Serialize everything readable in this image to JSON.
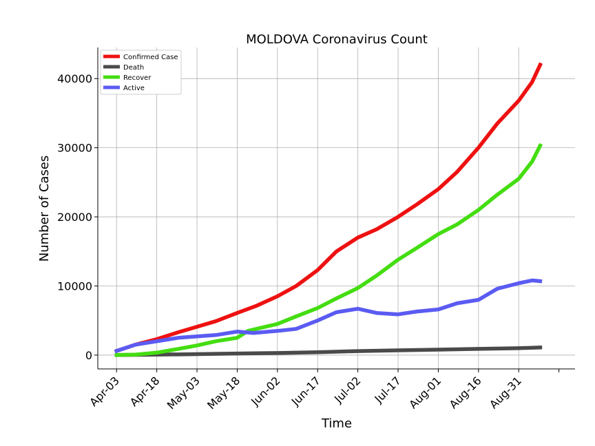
{
  "chart_data": {
    "type": "line",
    "title": "MOLDOVA Coronavirus Count",
    "xlabel": "Time",
    "ylabel": "Number of Cases",
    "x_range": [
      "2020-03-27",
      "2020-09-21"
    ],
    "ylim": [
      -2000,
      44500
    ],
    "grid": true,
    "legend_position": "top-left",
    "x_ticks": [
      "2020-04-03",
      "2020-04-18",
      "2020-05-03",
      "2020-05-18",
      "2020-06-02",
      "2020-06-17",
      "2020-07-02",
      "2020-07-17",
      "2020-08-01",
      "2020-08-16",
      "2020-08-31"
    ],
    "x_tick_labels": [
      "Apr-03",
      "Apr-18",
      "May-03",
      "May-18",
      "Jun-02",
      "Jun-17",
      "Jul-02",
      "Jul-17",
      "Aug-01",
      "Aug-16",
      "Aug-31"
    ],
    "y_ticks": [
      0,
      10000,
      20000,
      30000,
      40000
    ],
    "y_tick_labels": [
      "0",
      "10000",
      "20000",
      "30000",
      "40000"
    ],
    "series": [
      {
        "name": "Confirmed Case",
        "color": "#ee1111",
        "points": [
          [
            "2020-04-03",
            600
          ],
          [
            "2020-04-10",
            1500
          ],
          [
            "2020-04-18",
            2300
          ],
          [
            "2020-04-26",
            3300
          ],
          [
            "2020-05-03",
            4100
          ],
          [
            "2020-05-10",
            4900
          ],
          [
            "2020-05-18",
            6100
          ],
          [
            "2020-05-25",
            7100
          ],
          [
            "2020-06-02",
            8500
          ],
          [
            "2020-06-09",
            10000
          ],
          [
            "2020-06-17",
            12300
          ],
          [
            "2020-06-24",
            15000
          ],
          [
            "2020-07-02",
            17000
          ],
          [
            "2020-07-09",
            18200
          ],
          [
            "2020-07-17",
            20000
          ],
          [
            "2020-07-24",
            21800
          ],
          [
            "2020-08-01",
            24000
          ],
          [
            "2020-08-08",
            26500
          ],
          [
            "2020-08-16",
            30000
          ],
          [
            "2020-08-23",
            33500
          ],
          [
            "2020-08-31",
            36800
          ],
          [
            "2020-09-05",
            39500
          ],
          [
            "2020-09-08",
            42000
          ]
        ]
      },
      {
        "name": "Death",
        "color": "#4a4a4a",
        "points": [
          [
            "2020-04-03",
            10
          ],
          [
            "2020-04-18",
            60
          ],
          [
            "2020-05-03",
            140
          ],
          [
            "2020-05-18",
            230
          ],
          [
            "2020-06-02",
            300
          ],
          [
            "2020-06-17",
            410
          ],
          [
            "2020-07-02",
            580
          ],
          [
            "2020-07-17",
            690
          ],
          [
            "2020-08-01",
            790
          ],
          [
            "2020-08-16",
            900
          ],
          [
            "2020-08-31",
            1000
          ],
          [
            "2020-09-08",
            1110
          ]
        ]
      },
      {
        "name": "Recover",
        "color": "#44dd11",
        "points": [
          [
            "2020-04-03",
            20
          ],
          [
            "2020-04-10",
            60
          ],
          [
            "2020-04-18",
            350
          ],
          [
            "2020-04-26",
            900
          ],
          [
            "2020-05-03",
            1400
          ],
          [
            "2020-05-10",
            2000
          ],
          [
            "2020-05-18",
            2500
          ],
          [
            "2020-05-22",
            3500
          ],
          [
            "2020-06-02",
            4500
          ],
          [
            "2020-06-09",
            5600
          ],
          [
            "2020-06-17",
            6800
          ],
          [
            "2020-06-24",
            8200
          ],
          [
            "2020-07-02",
            9700
          ],
          [
            "2020-07-09",
            11500
          ],
          [
            "2020-07-17",
            13800
          ],
          [
            "2020-07-24",
            15500
          ],
          [
            "2020-08-01",
            17500
          ],
          [
            "2020-08-08",
            18900
          ],
          [
            "2020-08-16",
            21000
          ],
          [
            "2020-08-23",
            23200
          ],
          [
            "2020-08-31",
            25500
          ],
          [
            "2020-09-05",
            28000
          ],
          [
            "2020-09-08",
            30300
          ]
        ]
      },
      {
        "name": "Active",
        "color": "#5b5bf2",
        "points": [
          [
            "2020-04-03",
            600
          ],
          [
            "2020-04-10",
            1500
          ],
          [
            "2020-04-18",
            2000
          ],
          [
            "2020-04-26",
            2500
          ],
          [
            "2020-05-03",
            2700
          ],
          [
            "2020-05-10",
            2900
          ],
          [
            "2020-05-18",
            3400
          ],
          [
            "2020-05-24",
            3200
          ],
          [
            "2020-06-02",
            3500
          ],
          [
            "2020-06-09",
            3800
          ],
          [
            "2020-06-17",
            5000
          ],
          [
            "2020-06-24",
            6200
          ],
          [
            "2020-07-02",
            6700
          ],
          [
            "2020-07-09",
            6100
          ],
          [
            "2020-07-17",
            5900
          ],
          [
            "2020-07-24",
            6300
          ],
          [
            "2020-08-01",
            6600
          ],
          [
            "2020-08-08",
            7500
          ],
          [
            "2020-08-16",
            8000
          ],
          [
            "2020-08-23",
            9600
          ],
          [
            "2020-08-31",
            10400
          ],
          [
            "2020-09-05",
            10800
          ],
          [
            "2020-09-08",
            10700
          ]
        ]
      }
    ]
  }
}
